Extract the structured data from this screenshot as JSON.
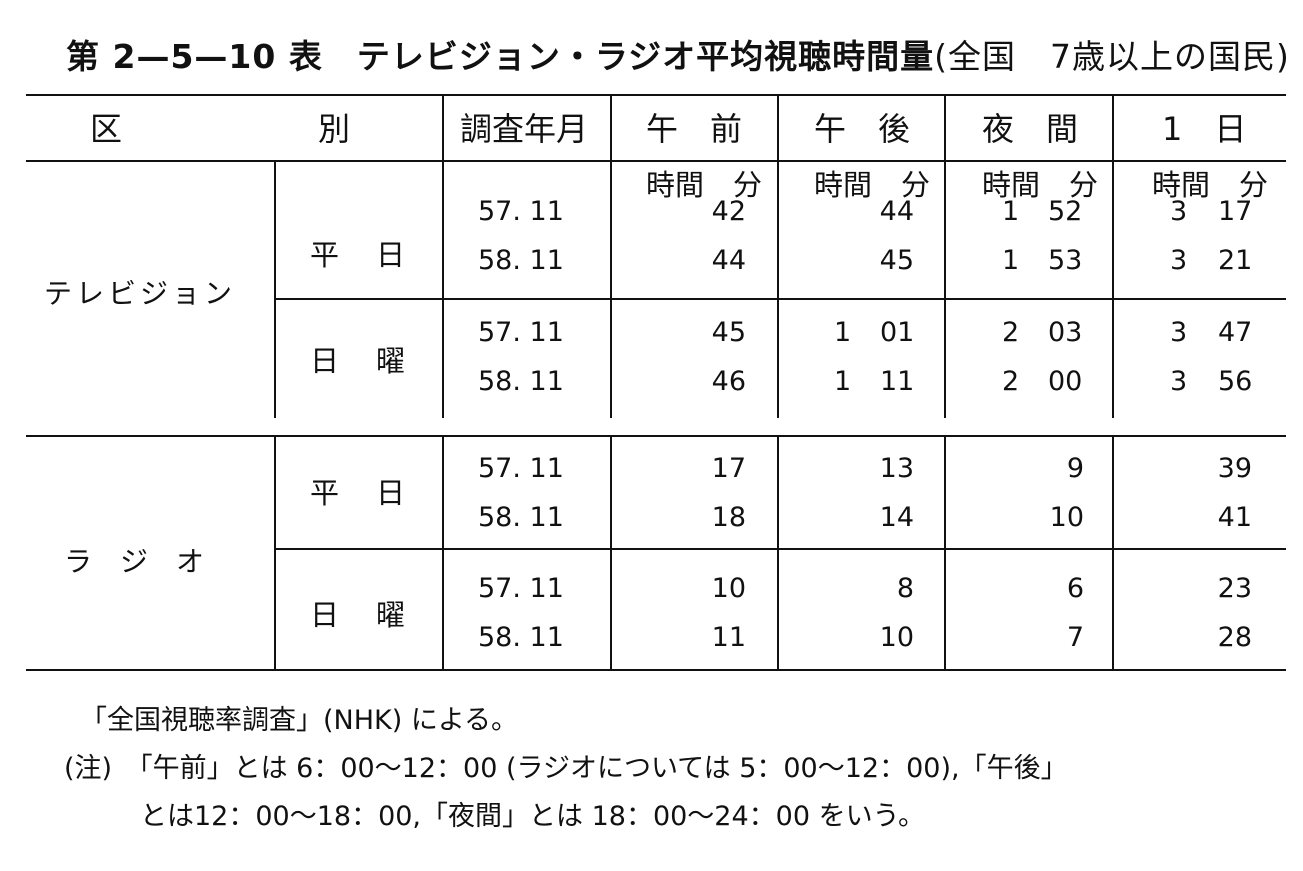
{
  "title": {
    "main": "第 2—5—10 表　テレビジョン・ラジオ平均視聴時間量",
    "sub": "(全国　7歳以上の国民)"
  },
  "header": {
    "kubetsu_1": "区",
    "kubetsu_2": "別",
    "survey": "調査年月",
    "gozen": "午　前",
    "gogo": "午　後",
    "yakan": "夜　間",
    "ichinichi": "1　日",
    "unit": "時間　分"
  },
  "groups": [
    {
      "name": "テレビジョン",
      "subgroups": [
        {
          "name_a": "平",
          "name_b": "日",
          "rows": [
            {
              "date": "57. 11",
              "gozen": "42",
              "gogo": "44",
              "yakan_h": "1",
              "yakan_m": "52",
              "day_h": "3",
              "day_m": "17"
            },
            {
              "date": "58. 11",
              "gozen": "44",
              "gogo": "45",
              "yakan_h": "1",
              "yakan_m": "53",
              "day_h": "3",
              "day_m": "21"
            }
          ]
        },
        {
          "name_a": "日",
          "name_b": "曜",
          "rows": [
            {
              "date": "57. 11",
              "gozen": "45",
              "gogo_h": "1",
              "gogo_m": "01",
              "yakan_h": "2",
              "yakan_m": "03",
              "day_h": "3",
              "day_m": "47"
            },
            {
              "date": "58. 11",
              "gozen": "46",
              "gogo_h": "1",
              "gogo_m": "11",
              "yakan_h": "2",
              "yakan_m": "00",
              "day_h": "3",
              "day_m": "56"
            }
          ]
        }
      ]
    },
    {
      "name": "ラ　ジ　オ",
      "subgroups": [
        {
          "name_a": "平",
          "name_b": "日",
          "rows": [
            {
              "date": "57. 11",
              "gozen": "17",
              "gogo": "13",
              "yakan": "9",
              "day": "39"
            },
            {
              "date": "58. 11",
              "gozen": "18",
              "gogo": "14",
              "yakan": "10",
              "day": "41"
            }
          ]
        },
        {
          "name_a": "日",
          "name_b": "曜",
          "rows": [
            {
              "date": "57. 11",
              "gozen": "10",
              "gogo": "8",
              "yakan": "6",
              "day": "23"
            },
            {
              "date": "58. 11",
              "gozen": "11",
              "gogo": "10",
              "yakan": "7",
              "day": "28"
            }
          ]
        }
      ]
    }
  ],
  "notes": {
    "source": "「全国視聴率調査」(NHK) による。",
    "note_1": "(注)　「午前」とは 6：00〜12：00 (ラジオについては 5：00〜12：00),「午後」",
    "note_2": "とは12：00〜18：00,「夜間」とは 18：00〜24：00 をいう。"
  }
}
